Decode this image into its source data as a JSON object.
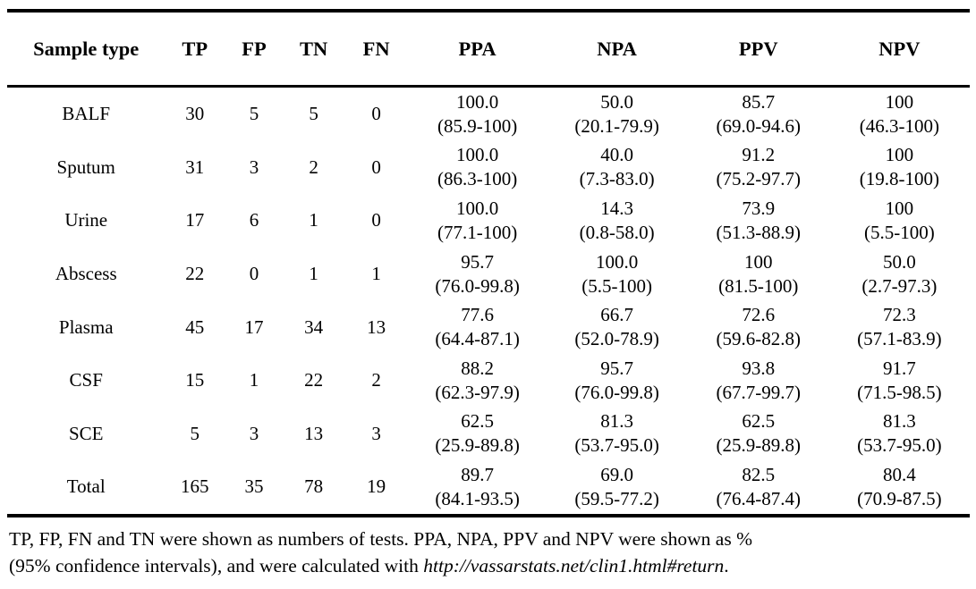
{
  "table": {
    "columns": [
      "Sample type",
      "TP",
      "FP",
      "TN",
      "FN",
      "PPA",
      "NPA",
      "PPV",
      "NPV"
    ],
    "rows": [
      {
        "sample": "BALF",
        "tp": "30",
        "fp": "5",
        "tn": "5",
        "fn": "0",
        "ppa": {
          "value": "100.0",
          "ci": "(85.9-100)"
        },
        "npa": {
          "value": "50.0",
          "ci": "(20.1-79.9)"
        },
        "ppv": {
          "value": "85.7",
          "ci": "(69.0-94.6)"
        },
        "npv": {
          "value": "100",
          "ci": "(46.3-100)"
        }
      },
      {
        "sample": "Sputum",
        "tp": "31",
        "fp": "3",
        "tn": "2",
        "fn": "0",
        "ppa": {
          "value": "100.0",
          "ci": "(86.3-100)"
        },
        "npa": {
          "value": "40.0",
          "ci": "(7.3-83.0)"
        },
        "ppv": {
          "value": "91.2",
          "ci": "(75.2-97.7)"
        },
        "npv": {
          "value": "100",
          "ci": "(19.8-100)"
        }
      },
      {
        "sample": "Urine",
        "tp": "17",
        "fp": "6",
        "tn": "1",
        "fn": "0",
        "ppa": {
          "value": "100.0",
          "ci": "(77.1-100)"
        },
        "npa": {
          "value": "14.3",
          "ci": "(0.8-58.0)"
        },
        "ppv": {
          "value": "73.9",
          "ci": "(51.3-88.9)"
        },
        "npv": {
          "value": "100",
          "ci": "(5.5-100)"
        }
      },
      {
        "sample": "Abscess",
        "tp": "22",
        "fp": "0",
        "tn": "1",
        "fn": "1",
        "ppa": {
          "value": "95.7",
          "ci": "(76.0-99.8)"
        },
        "npa": {
          "value": "100.0",
          "ci": "(5.5-100)"
        },
        "ppv": {
          "value": "100",
          "ci": "(81.5-100)"
        },
        "npv": {
          "value": "50.0",
          "ci": "(2.7-97.3)"
        }
      },
      {
        "sample": "Plasma",
        "tp": "45",
        "fp": "17",
        "tn": "34",
        "fn": "13",
        "ppa": {
          "value": "77.6",
          "ci": "(64.4-87.1)"
        },
        "npa": {
          "value": "66.7",
          "ci": "(52.0-78.9)"
        },
        "ppv": {
          "value": "72.6",
          "ci": "(59.6-82.8)"
        },
        "npv": {
          "value": "72.3",
          "ci": "(57.1-83.9)"
        }
      },
      {
        "sample": "CSF",
        "tp": "15",
        "fp": "1",
        "tn": "22",
        "fn": "2",
        "ppa": {
          "value": "88.2",
          "ci": "(62.3-97.9)"
        },
        "npa": {
          "value": "95.7",
          "ci": "(76.0-99.8)"
        },
        "ppv": {
          "value": "93.8",
          "ci": "(67.7-99.7)"
        },
        "npv": {
          "value": "91.7",
          "ci": "(71.5-98.5)"
        }
      },
      {
        "sample": "SCE",
        "tp": "5",
        "fp": "3",
        "tn": "13",
        "fn": "3",
        "ppa": {
          "value": "62.5",
          "ci": "(25.9-89.8)"
        },
        "npa": {
          "value": "81.3",
          "ci": "(53.7-95.0)"
        },
        "ppv": {
          "value": "62.5",
          "ci": "(25.9-89.8)"
        },
        "npv": {
          "value": "81.3",
          "ci": "(53.7-95.0)"
        }
      },
      {
        "sample": "Total",
        "tp": "165",
        "fp": "35",
        "tn": "78",
        "fn": "19",
        "ppa": {
          "value": "89.7",
          "ci": "(84.1-93.5)"
        },
        "npa": {
          "value": "69.0",
          "ci": "(59.5-77.2)"
        },
        "ppv": {
          "value": "82.5",
          "ci": "(76.4-87.4)"
        },
        "npv": {
          "value": "80.4",
          "ci": "(70.9-87.5)"
        }
      }
    ]
  },
  "footnote": {
    "line1": "TP, FP, FN and TN were shown as numbers of tests. PPA, NPA, PPV and NPV were shown as %",
    "line2_prefix": "(95% confidence intervals), and were calculated with ",
    "line2_link": "http://vassarstats.net/clin1.html#return",
    "line2_suffix": "."
  },
  "colors": {
    "text": "#000000",
    "background": "#ffffff",
    "border": "#000000"
  }
}
